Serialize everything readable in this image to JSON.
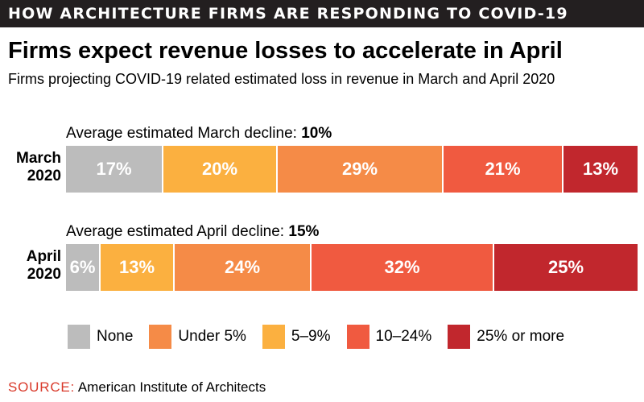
{
  "banner": "HOW ARCHITECTURE FIRMS ARE RESPONDING TO COVID-19",
  "colors": {
    "none": "#bcbcbc",
    "under5": "#f58b47",
    "five_nine": "#fbb040",
    "ten_24": "#f05a40",
    "over25": "#c1272d",
    "banner_bg": "#231f20",
    "source_key": "#d93a2b"
  },
  "chart_data": {
    "type": "bar",
    "orientation": "horizontal",
    "stacked": true,
    "normalized_percent": true,
    "title": "Firms expect revenue losses to accelerate in April",
    "subtitle": "Firms projecting COVID-19 related estimated loss in revenue in March and April 2020",
    "categories": [
      "March 2020",
      "April 2020"
    ],
    "category_lines": [
      [
        "March",
        "2020"
      ],
      [
        "April",
        "2020"
      ]
    ],
    "annotations": [
      {
        "text": "Average estimated March decline: ",
        "value": "10%"
      },
      {
        "text": "Average estimated April decline: ",
        "value": "15%"
      }
    ],
    "series": [
      {
        "name": "None",
        "color": "#bcbcbc",
        "values": [
          17,
          6
        ]
      },
      {
        "name": "5–9%",
        "color": "#fbb040",
        "values": [
          20,
          13
        ]
      },
      {
        "name": "Under 5%",
        "color": "#f58b47",
        "values": [
          29,
          24
        ]
      },
      {
        "name": "10–24%",
        "color": "#f05a40",
        "values": [
          21,
          32
        ]
      },
      {
        "name": "25% or more",
        "color": "#c1272d",
        "values": [
          13,
          25
        ]
      }
    ],
    "legend": {
      "placement": "bottom",
      "items": [
        {
          "name": "None",
          "color": "#bcbcbc"
        },
        {
          "name": "Under 5%",
          "color": "#f58b47"
        },
        {
          "name": "5–9%",
          "color": "#fbb040"
        },
        {
          "name": "10–24%",
          "color": "#f05a40"
        },
        {
          "name": "25% or more",
          "color": "#c1272d"
        }
      ]
    },
    "grid": false
  },
  "source": {
    "label": "SOURCE:",
    "text": " American Institute of Architects"
  }
}
